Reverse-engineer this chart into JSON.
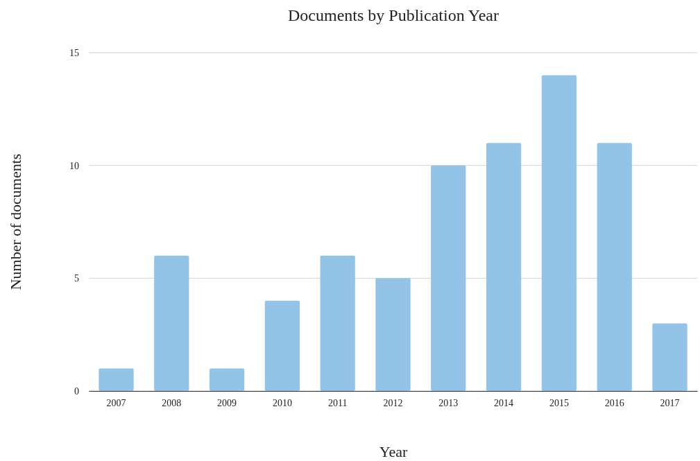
{
  "chart_data": {
    "type": "bar",
    "title": "Documents by Publication Year",
    "xlabel": "Year",
    "ylabel": "Number of documents",
    "categories": [
      "2007",
      "2008",
      "2009",
      "2010",
      "2011",
      "2012",
      "2013",
      "2014",
      "2015",
      "2016",
      "2017"
    ],
    "values": [
      1,
      6,
      1,
      4,
      6,
      5,
      10,
      11,
      14,
      11,
      3
    ],
    "color": "#93c4e8",
    "ylim": [
      0,
      15
    ],
    "yticks": [
      0,
      5,
      10,
      15
    ],
    "grid": "y"
  }
}
